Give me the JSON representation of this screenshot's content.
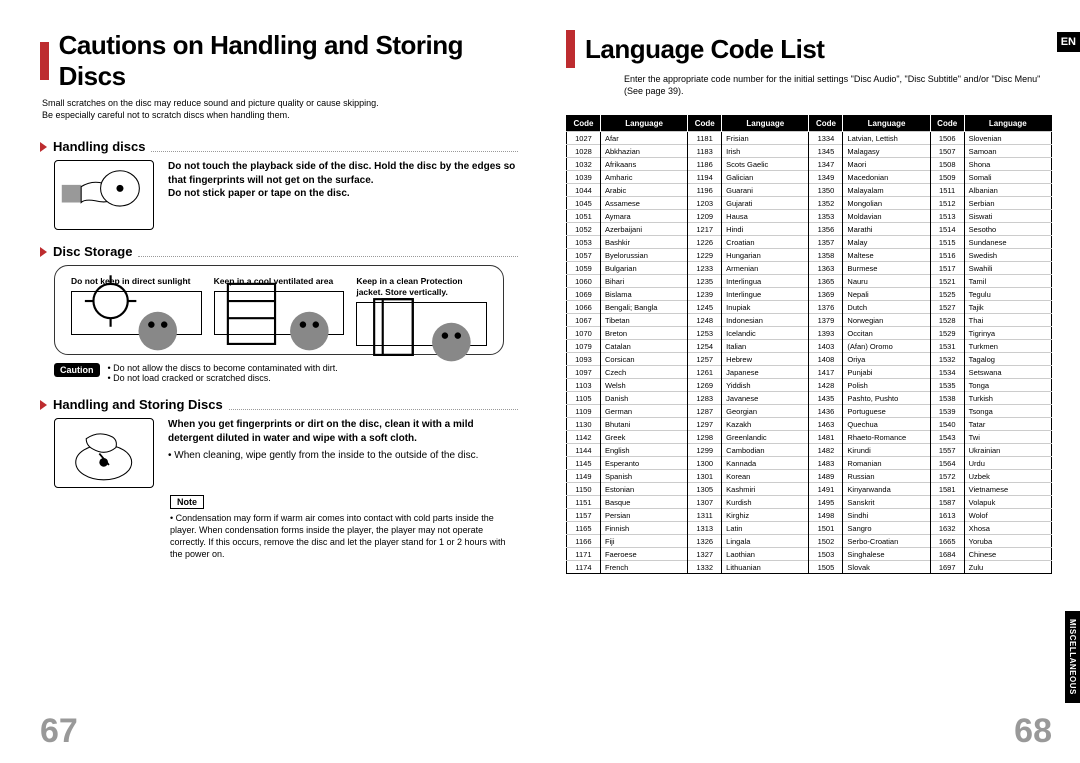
{
  "left": {
    "title": "Cautions on Handling and Storing Discs",
    "intro": "Small scratches on the disc may reduce sound and picture quality or cause skipping.\nBe especially careful not to scratch discs when handling them.",
    "handling": {
      "title": "Handling discs",
      "bold1": "Do not touch the playback side of the disc. Hold the disc by the edges so that fingerprints will not get on the surface.",
      "bold2": "Do not stick paper or tape on the disc."
    },
    "storage": {
      "title": "Disc Storage",
      "items": [
        "Do not keep in direct sunlight",
        "Keep in a cool ventilated area",
        "Keep in a clean Protection jacket. Store vertically."
      ]
    },
    "caution": {
      "label": "Caution",
      "lines": [
        "Do not allow the discs to become contaminated with dirt.",
        "Do not load cracked or scratched discs."
      ]
    },
    "handling_storing": {
      "title": "Handling and Storing Discs",
      "bold": "When you get fingerprints or dirt on the disc, clean it with a mild detergent diluted in water and wipe with a soft cloth.",
      "bullet": "When cleaning, wipe gently from the inside to the outside of the disc."
    },
    "note": {
      "label": "Note",
      "text": "Condensation may form if warm air comes into contact with cold parts inside the player. When condensation forms inside the player, the player may not operate correctly. If this occurs, remove the disc and let the player stand for 1 or 2 hours with the power on."
    },
    "pagenum": "67"
  },
  "right": {
    "title": "Language Code List",
    "intro": "Enter the appropriate code number for the initial settings \"Disc Audio\", \"Disc Subtitle\" and/or \"Disc Menu\" (See page 39).",
    "en_badge": "EN",
    "side_tab": "MISCELLANEOUS",
    "headers": [
      "Code",
      "Language",
      "Code",
      "Language",
      "Code",
      "Language",
      "Code",
      "Language"
    ],
    "rows": [
      [
        "1027",
        "Afar",
        "1181",
        "Frisian",
        "1334",
        "Latvian, Lettish",
        "1506",
        "Slovenian"
      ],
      [
        "1028",
        "Abkhazian",
        "1183",
        "Irish",
        "1345",
        "Malagasy",
        "1507",
        "Samoan"
      ],
      [
        "1032",
        "Afrikaans",
        "1186",
        "Scots Gaelic",
        "1347",
        "Maori",
        "1508",
        "Shona"
      ],
      [
        "1039",
        "Amharic",
        "1194",
        "Galician",
        "1349",
        "Macedonian",
        "1509",
        "Somali"
      ],
      [
        "1044",
        "Arabic",
        "1196",
        "Guarani",
        "1350",
        "Malayalam",
        "1511",
        "Albanian"
      ],
      [
        "1045",
        "Assamese",
        "1203",
        "Gujarati",
        "1352",
        "Mongolian",
        "1512",
        "Serbian"
      ],
      [
        "1051",
        "Aymara",
        "1209",
        "Hausa",
        "1353",
        "Moldavian",
        "1513",
        "Siswati"
      ],
      [
        "1052",
        "Azerbaijani",
        "1217",
        "Hindi",
        "1356",
        "Marathi",
        "1514",
        "Sesotho"
      ],
      [
        "1053",
        "Bashkir",
        "1226",
        "Croatian",
        "1357",
        "Malay",
        "1515",
        "Sundanese"
      ],
      [
        "1057",
        "Byelorussian",
        "1229",
        "Hungarian",
        "1358",
        "Maltese",
        "1516",
        "Swedish"
      ],
      [
        "1059",
        "Bulgarian",
        "1233",
        "Armenian",
        "1363",
        "Burmese",
        "1517",
        "Swahili"
      ],
      [
        "1060",
        "Bihari",
        "1235",
        "Interlingua",
        "1365",
        "Nauru",
        "1521",
        "Tamil"
      ],
      [
        "1069",
        "Bislama",
        "1239",
        "Interlingue",
        "1369",
        "Nepali",
        "1525",
        "Tegulu"
      ],
      [
        "1066",
        "Bengali; Bangla",
        "1245",
        "Inupiak",
        "1376",
        "Dutch",
        "1527",
        "Tajik"
      ],
      [
        "1067",
        "Tibetan",
        "1248",
        "Indonesian",
        "1379",
        "Norwegian",
        "1528",
        "Thai"
      ],
      [
        "1070",
        "Breton",
        "1253",
        "Icelandic",
        "1393",
        "Occitan",
        "1529",
        "Tigrinya"
      ],
      [
        "1079",
        "Catalan",
        "1254",
        "Italian",
        "1403",
        "(Afan) Oromo",
        "1531",
        "Turkmen"
      ],
      [
        "1093",
        "Corsican",
        "1257",
        "Hebrew",
        "1408",
        "Oriya",
        "1532",
        "Tagalog"
      ],
      [
        "1097",
        "Czech",
        "1261",
        "Japanese",
        "1417",
        "Punjabi",
        "1534",
        "Setswana"
      ],
      [
        "1103",
        "Welsh",
        "1269",
        "Yiddish",
        "1428",
        "Polish",
        "1535",
        "Tonga"
      ],
      [
        "1105",
        "Danish",
        "1283",
        "Javanese",
        "1435",
        "Pashto, Pushto",
        "1538",
        "Turkish"
      ],
      [
        "1109",
        "German",
        "1287",
        "Georgian",
        "1436",
        "Portuguese",
        "1539",
        "Tsonga"
      ],
      [
        "1130",
        "Bhutani",
        "1297",
        "Kazakh",
        "1463",
        "Quechua",
        "1540",
        "Tatar"
      ],
      [
        "1142",
        "Greek",
        "1298",
        "Greenlandic",
        "1481",
        "Rhaeto-Romance",
        "1543",
        "Twi"
      ],
      [
        "1144",
        "English",
        "1299",
        "Cambodian",
        "1482",
        "Kirundi",
        "1557",
        "Ukrainian"
      ],
      [
        "1145",
        "Esperanto",
        "1300",
        "Kannada",
        "1483",
        "Romanian",
        "1564",
        "Urdu"
      ],
      [
        "1149",
        "Spanish",
        "1301",
        "Korean",
        "1489",
        "Russian",
        "1572",
        "Uzbek"
      ],
      [
        "1150",
        "Estonian",
        "1305",
        "Kashmiri",
        "1491",
        "Kinyarwanda",
        "1581",
        "Vietnamese"
      ],
      [
        "1151",
        "Basque",
        "1307",
        "Kurdish",
        "1495",
        "Sanskrit",
        "1587",
        "Volapuk"
      ],
      [
        "1157",
        "Persian",
        "1311",
        "Kirghiz",
        "1498",
        "Sindhi",
        "1613",
        "Wolof"
      ],
      [
        "1165",
        "Finnish",
        "1313",
        "Latin",
        "1501",
        "Sangro",
        "1632",
        "Xhosa"
      ],
      [
        "1166",
        "Fiji",
        "1326",
        "Lingala",
        "1502",
        "Serbo-Croatian",
        "1665",
        "Yoruba"
      ],
      [
        "1171",
        "Faeroese",
        "1327",
        "Laothian",
        "1503",
        "Singhalese",
        "1684",
        "Chinese"
      ],
      [
        "1174",
        "French",
        "1332",
        "Lithuanian",
        "1505",
        "Slovak",
        "1697",
        "Zulu"
      ]
    ],
    "pagenum": "68"
  }
}
